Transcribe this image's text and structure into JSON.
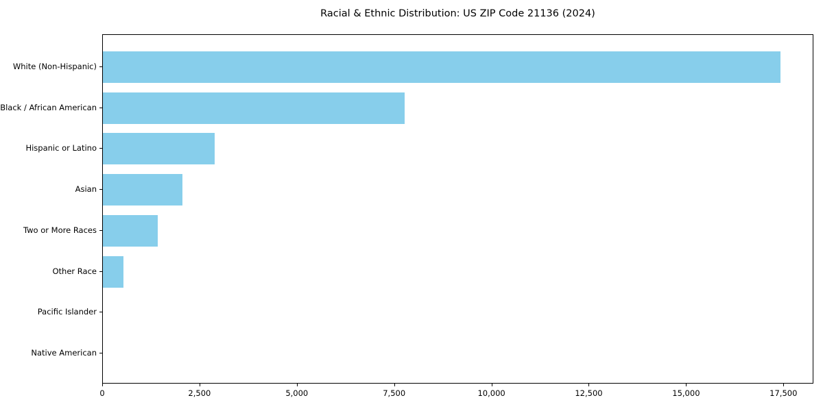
{
  "chart_data": {
    "type": "bar",
    "orientation": "horizontal",
    "title": "Racial & Ethnic Distribution: US ZIP Code 21136 (2024)",
    "categories": [
      "White (Non-Hispanic)",
      "Black / African American",
      "Hispanic or Latino",
      "Asian",
      "Two or More Races",
      "Other Race",
      "Pacific Islander",
      "Native American"
    ],
    "values": [
      17400,
      7750,
      2870,
      2050,
      1410,
      530,
      0,
      0
    ],
    "xlabel": "",
    "ylabel": "",
    "xlim": [
      0,
      18270
    ],
    "x_ticks": [
      0,
      2500,
      5000,
      7500,
      10000,
      12500,
      15000,
      17500
    ],
    "x_tick_labels": [
      "0",
      "2,500",
      "5,000",
      "7,500",
      "10,000",
      "12,500",
      "15,000",
      "17,500"
    ],
    "bar_color": "#87CEEB",
    "axis_color": "#000000",
    "grid": false,
    "legend": null
  }
}
